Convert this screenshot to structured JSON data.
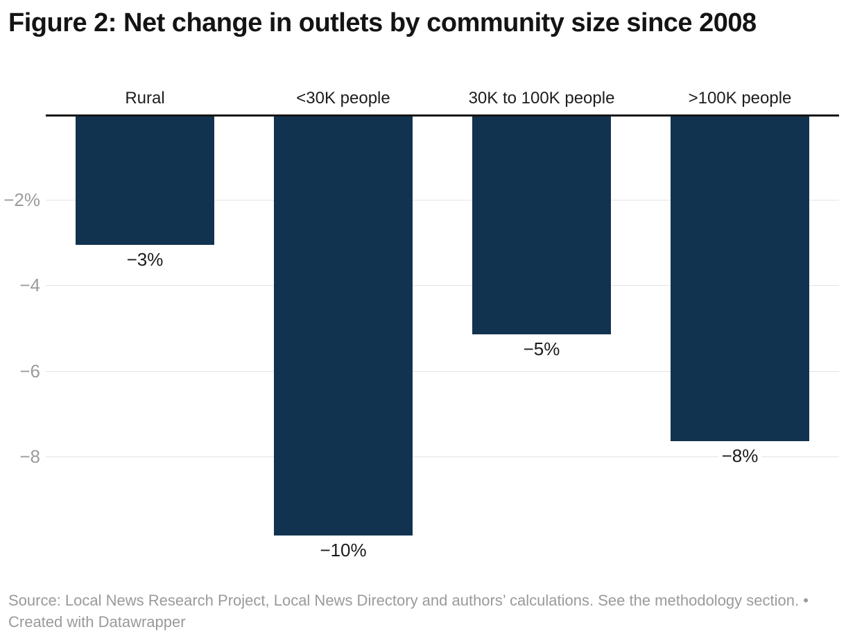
{
  "title": "Figure 2: Net change in outlets by community size since 2008",
  "footer": {
    "line1": "Source: Local News Research Project, Local News Directory and authors’ calculations. See the methodology section. •",
    "line2": "Created with Datawrapper"
  },
  "chart_data": {
    "type": "bar",
    "orientation": "vertical-column",
    "title": "Figure 2: Net change in outlets by community size since 2008",
    "categories": [
      "Rural",
      "<30K people",
      "30K to 100K people",
      ">100K people"
    ],
    "values": [
      -3,
      -9.8,
      -5.1,
      -7.6
    ],
    "value_labels": [
      "−3%",
      "−10%",
      "−5%",
      "−8%"
    ],
    "xlabel": "",
    "ylabel": "",
    "ylim": [
      -10.6,
      0
    ],
    "yticks": [
      {
        "value": -2,
        "label": "−2%"
      },
      {
        "value": -4,
        "label": "−4"
      },
      {
        "value": -6,
        "label": "−6"
      },
      {
        "value": -8,
        "label": "−8"
      }
    ],
    "grid": true,
    "legend": "none",
    "bar_color": "#12334f",
    "gridline_color": "#e4e4e4",
    "axis_line_color": "#151515",
    "tick_label_color": "#9b9b9b"
  }
}
